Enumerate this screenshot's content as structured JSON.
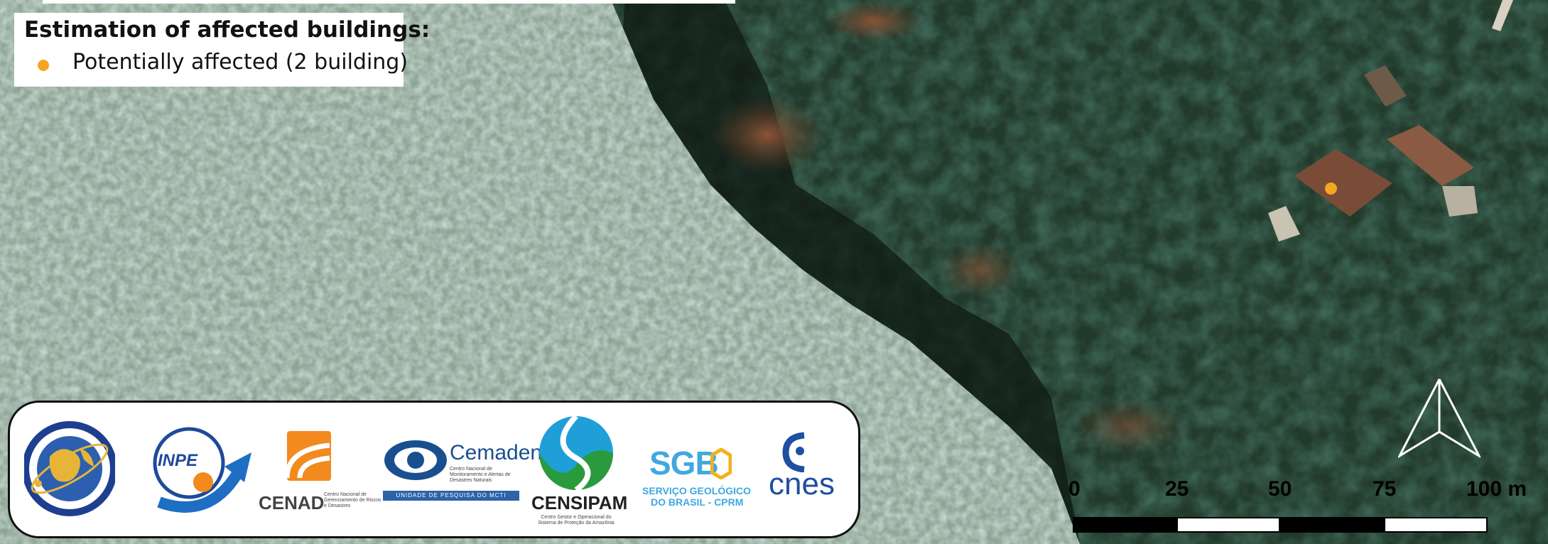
{
  "legend": {
    "title": "Estimation of affected buildings:",
    "items": [
      {
        "label": "Potentially affected (2 building)",
        "color": "#f5a623"
      }
    ]
  },
  "colors": {
    "affected_marker": "#f5a623",
    "river_water": "#8fa79b",
    "forest": "#1f3a2c",
    "landslide_soil": "#7a4a30"
  },
  "map_markers": [
    {
      "type": "affected-building",
      "color": "#f5a623"
    }
  ],
  "logos": {
    "charter": {
      "ring_text": "INTERNATIONAL CHARTER SPACE & MAJOR DISASTERS · CHARTE INTERNATIONALE ESPACE ET CATASTROPHES MAJEURES"
    },
    "inpe": {
      "text": "INPE"
    },
    "cenad": {
      "text": "CENAD",
      "sub": "Centro Nacional de Gerenciamento de Riscos e Desastres"
    },
    "cemaden": {
      "text": "Cemaden",
      "sub": "Centro Nacional de Monitoramento e Alertas de Desastres Naturais",
      "band": "UNIDADE DE PESQUISA DO MCTI"
    },
    "censipam": {
      "text": "CENSIPAM",
      "sub": "Centro Gestor e Operacional do Sistema de Proteção da Amazônia"
    },
    "sgb": {
      "text": "SGB",
      "sub1": "SERVIÇO GEOLÓGICO",
      "sub2": "DO BRASIL - CPRM"
    },
    "cnes": {
      "text": "cnes"
    }
  },
  "north_arrow": {
    "icon": "north-arrow-icon"
  },
  "scale_bar": {
    "labels": [
      "0",
      "25",
      "50",
      "75",
      "100 m"
    ]
  }
}
